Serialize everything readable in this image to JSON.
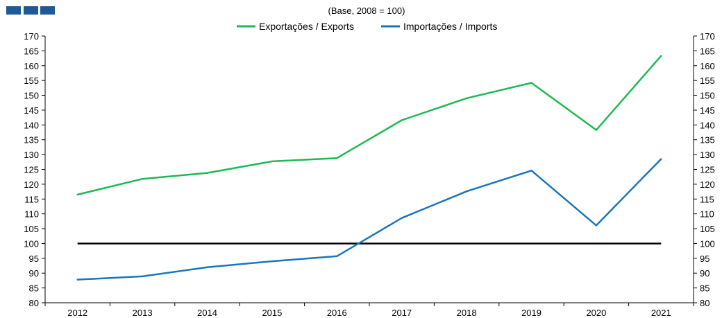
{
  "logo_color": "#1f5a96",
  "chart_data": {
    "type": "line",
    "title": "",
    "subtitle": "(Base, 2008 = 100)",
    "xlabel": "",
    "ylabel": "",
    "x": [
      2012,
      2013,
      2014,
      2015,
      2016,
      2017,
      2018,
      2019,
      2020,
      2021
    ],
    "x_tick_labels": [
      "2012",
      "2013",
      "2014",
      "2015",
      "2016",
      "2017",
      "2018",
      "2019",
      "2020",
      "2021"
    ],
    "ylim": [
      80,
      170
    ],
    "y_ticks": [
      80,
      85,
      90,
      95,
      100,
      105,
      110,
      115,
      120,
      125,
      130,
      135,
      140,
      145,
      150,
      155,
      160,
      165,
      170
    ],
    "y_tick_labels": [
      "80",
      "85",
      "90",
      "95",
      "100",
      "105",
      "110",
      "115",
      "120",
      "125",
      "130",
      "135",
      "140",
      "145",
      "150",
      "155",
      "160",
      "165",
      "170"
    ],
    "grid": false,
    "legend_position": "top-center",
    "reference_line": {
      "y": 100,
      "color": "#000000"
    },
    "series": [
      {
        "name": "Exportações / Exports",
        "color": "#1db954",
        "values": [
          116.5,
          121.8,
          123.8,
          127.7,
          128.8,
          141.6,
          149.0,
          154.2,
          138.3,
          163.3
        ]
      },
      {
        "name": "Importações / Imports",
        "color": "#1a75bc",
        "values": [
          87.8,
          88.9,
          92.0,
          94.0,
          95.7,
          108.6,
          117.6,
          124.6,
          106.1,
          128.5
        ]
      }
    ]
  }
}
